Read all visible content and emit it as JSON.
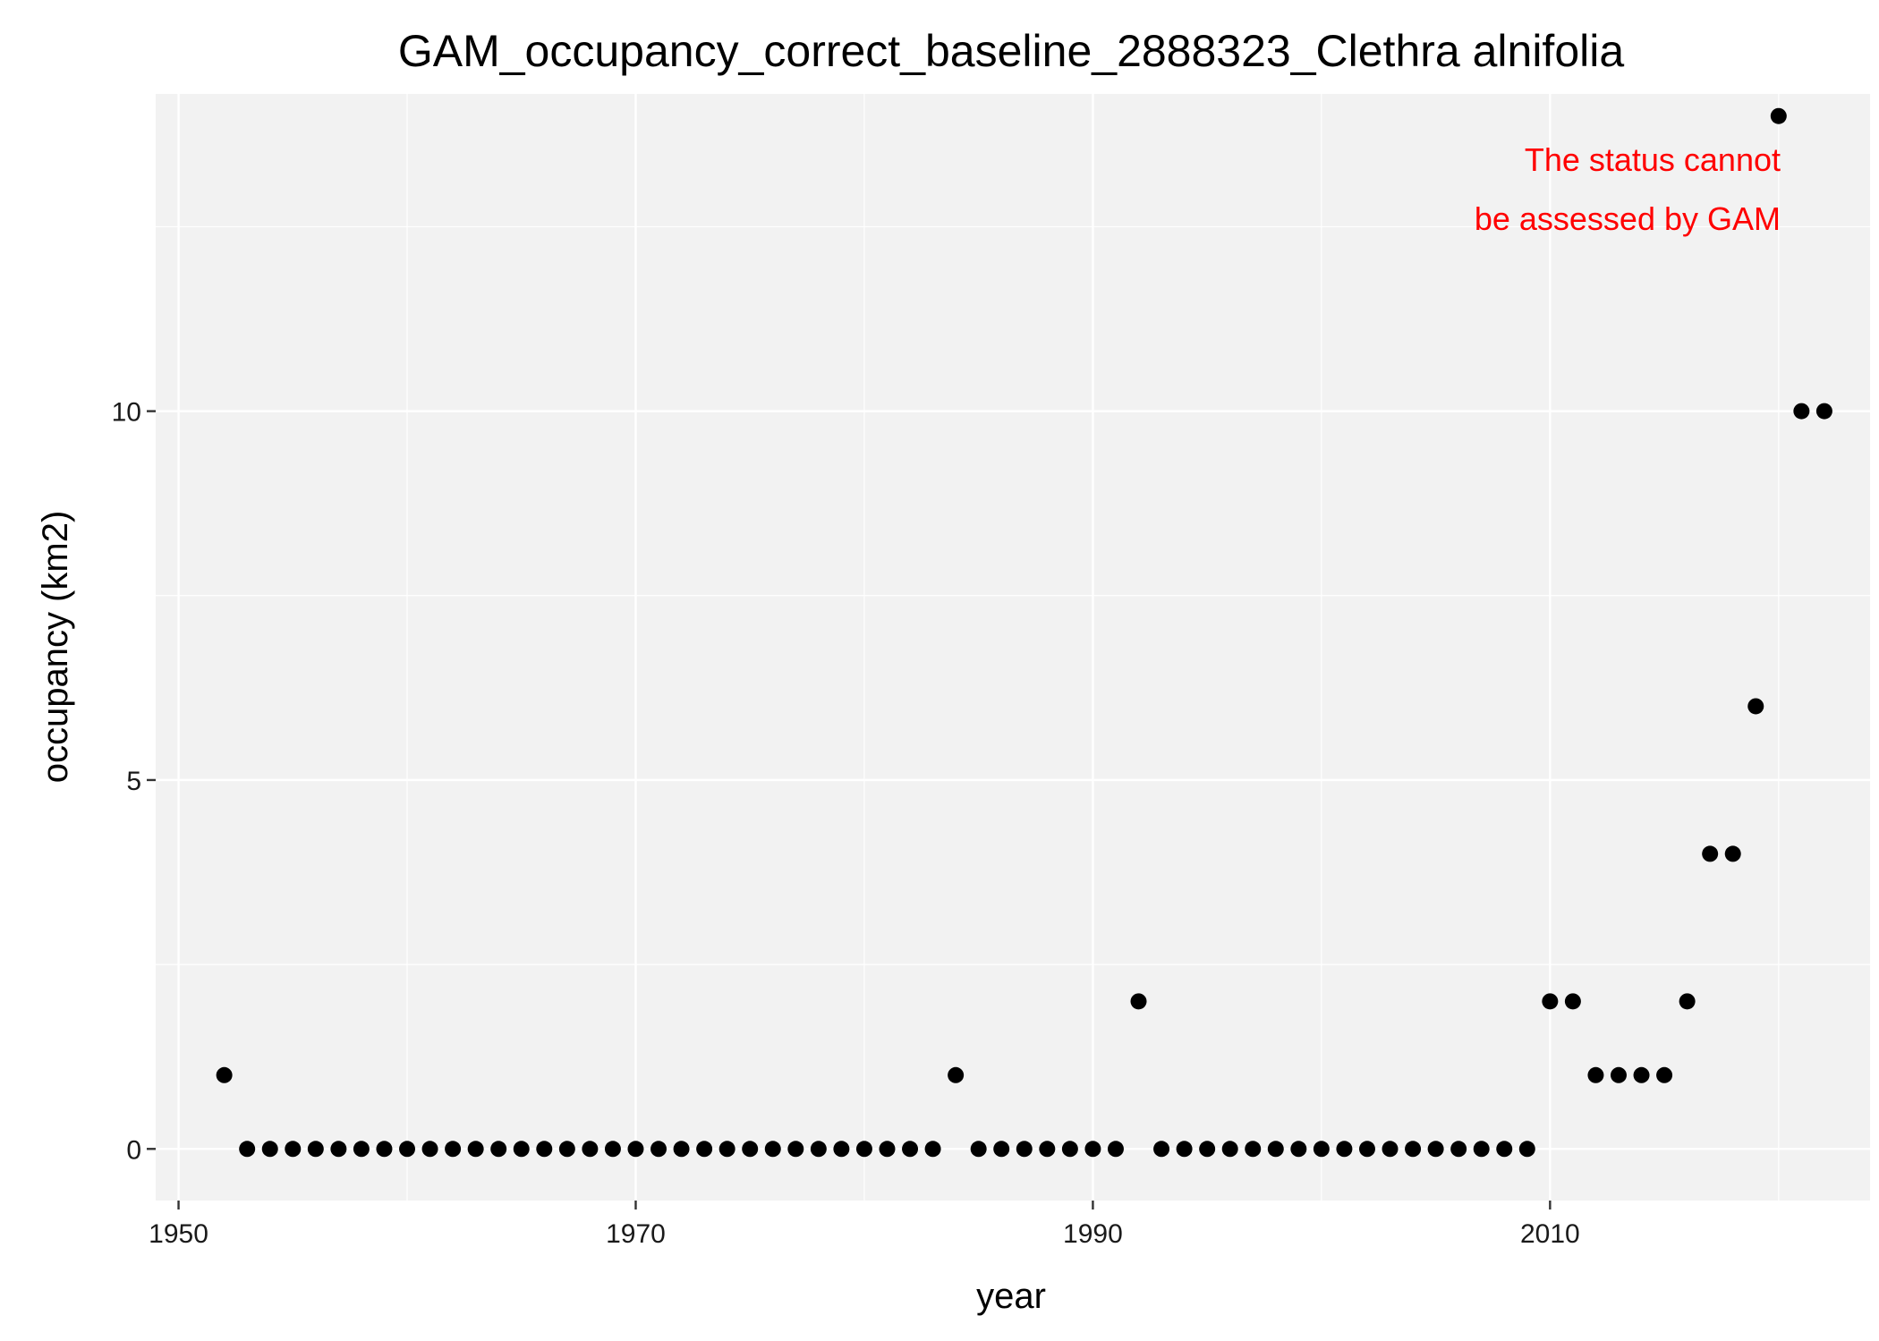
{
  "chart_data": {
    "type": "scatter",
    "title": "GAM_occupancy_correct_baseline_2888323_Clethra alnifolia",
    "xlabel": "year",
    "ylabel": "occupancy (km2)",
    "xlim": [
      1949,
      2024
    ],
    "ylim": [
      -0.7,
      14.3
    ],
    "x_major_ticks": [
      1950,
      1970,
      1990,
      2010
    ],
    "x_minor_ticks": [
      1960,
      1980,
      2000,
      2020
    ],
    "y_major_ticks": [
      0,
      5,
      10
    ],
    "y_minor_ticks": [
      2.5,
      7.5,
      12.5
    ],
    "x_tick_labels": [
      "1950",
      "1970",
      "1990",
      "2010"
    ],
    "y_tick_labels": [
      "0",
      "5",
      "10"
    ],
    "grid": true,
    "legend": "none",
    "colors": {
      "panel": "#f2f2f2",
      "grid": "#ffffff",
      "point": "#000000",
      "annotation": "#ff0000"
    },
    "points": {
      "x": [
        1952,
        1953,
        1954,
        1955,
        1956,
        1957,
        1958,
        1959,
        1960,
        1961,
        1962,
        1963,
        1964,
        1965,
        1966,
        1967,
        1968,
        1969,
        1970,
        1971,
        1972,
        1973,
        1974,
        1975,
        1976,
        1977,
        1978,
        1979,
        1980,
        1981,
        1982,
        1983,
        1984,
        1985,
        1986,
        1987,
        1988,
        1989,
        1990,
        1991,
        1992,
        1993,
        1994,
        1995,
        1996,
        1997,
        1998,
        1999,
        2000,
        2001,
        2002,
        2003,
        2004,
        2005,
        2006,
        2007,
        2008,
        2009,
        2010,
        2011,
        2012,
        2013,
        2014,
        2015,
        2016,
        2017,
        2018,
        2019,
        2020,
        2021,
        2022
      ],
      "y": [
        1,
        0,
        0,
        0,
        0,
        0,
        0,
        0,
        0,
        0,
        0,
        0,
        0,
        0,
        0,
        0,
        0,
        0,
        0,
        0,
        0,
        0,
        0,
        0,
        0,
        0,
        0,
        0,
        0,
        0,
        0,
        0,
        1,
        0,
        0,
        0,
        0,
        0,
        0,
        0,
        2,
        0,
        0,
        0,
        0,
        0,
        0,
        0,
        0,
        0,
        0,
        0,
        0,
        0,
        0,
        0,
        0,
        0,
        2,
        2,
        1,
        1,
        1,
        1,
        2,
        4,
        4,
        6,
        14,
        10,
        10
      ]
    },
    "annotation": {
      "lines": [
        "The status cannot",
        "be assessed by GAM"
      ]
    }
  }
}
